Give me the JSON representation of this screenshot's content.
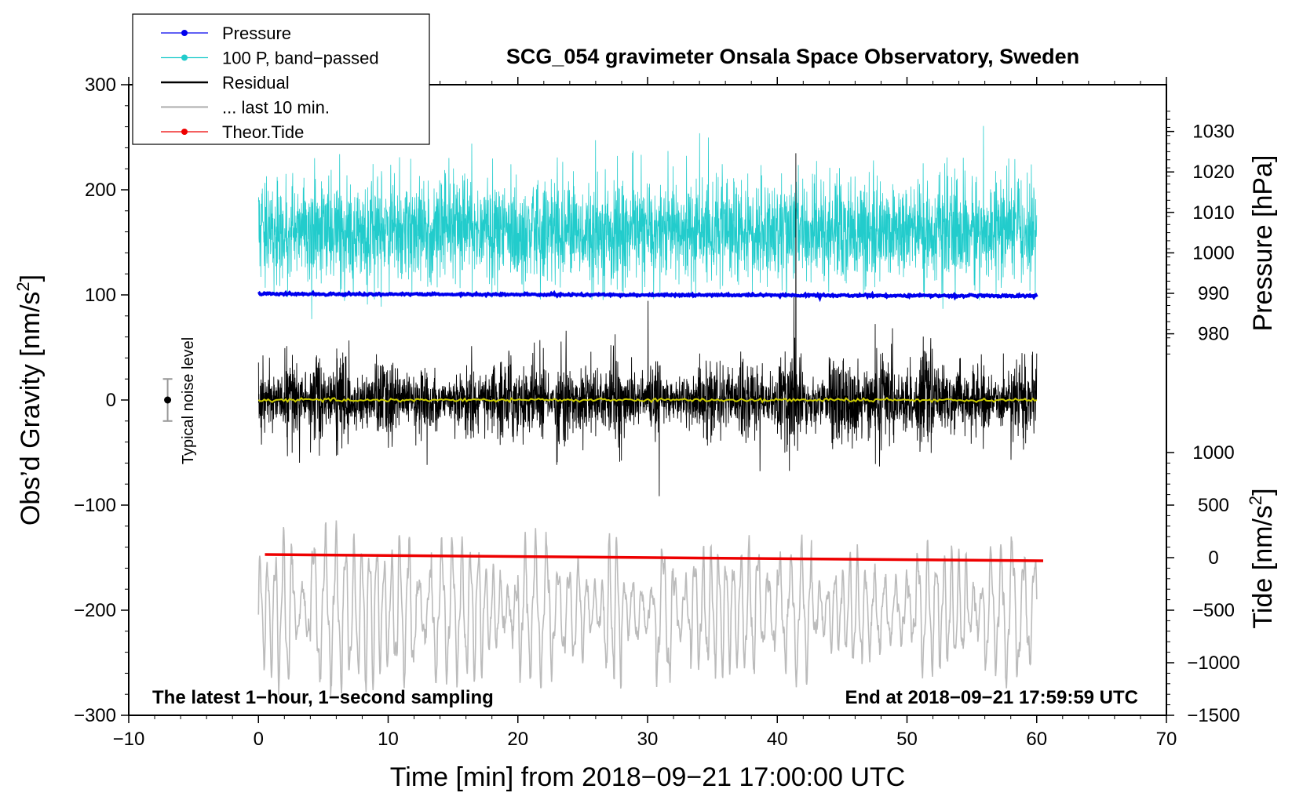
{
  "chart_data": {
    "type": "line",
    "title": "SCG_054 gravimeter Onsala Space Observatory, Sweden",
    "xlabel": "Time [min] from 2018−09−21 17:00:00 UTC",
    "ylabel_left_main": "Obs’d Gravity [nm/s",
    "ylabel_left_sup": "2",
    "ylabel_left_end": "]",
    "ylabel_right_top": "Pressure [hPa]",
    "ylabel_right_bottom_main": "Tide [nm/s",
    "ylabel_right_bottom_sup": "2",
    "ylabel_right_bottom_end": "]",
    "xlim": [
      -10,
      70
    ],
    "ylim": [
      -300,
      300
    ],
    "x_ticks": [
      "−10",
      "0",
      "10",
      "20",
      "30",
      "40",
      "50",
      "60",
      "70"
    ],
    "x_tick_values": [
      -10,
      0,
      10,
      20,
      30,
      40,
      50,
      60,
      70
    ],
    "y_ticks": [
      "300",
      "200",
      "100",
      "0",
      "−100",
      "−200",
      "−300"
    ],
    "y_tick_values": [
      300,
      200,
      100,
      0,
      -100,
      -200,
      -300
    ],
    "pressure_axis": {
      "ticks": [
        "1030",
        "1020",
        "1010",
        "1000",
        "990",
        "980"
      ],
      "values": [
        1030,
        1020,
        1010,
        1000,
        990,
        980
      ],
      "gravity_at_1000_hPa": 140,
      "gravity_per_hPa": 3.85
    },
    "tide_axis": {
      "ticks": [
        "1000",
        "500",
        "0",
        "−500",
        "−1000",
        "−1500"
      ],
      "values": [
        1000,
        500,
        0,
        -500,
        -1000,
        -1500
      ],
      "gravity_at_0": -150,
      "gravity_per_unit": 0.1
    },
    "series": [
      {
        "name": "Pressure",
        "color": "#0000ee",
        "start_gravity": 101,
        "end_gravity": 99
      },
      {
        "name": "100 P, band−passed",
        "color": "#22cccc",
        "center_gravity": 160,
        "amplitude": 45
      },
      {
        "name": "Residual",
        "color": "#000000",
        "center_gravity": 0,
        "amplitude": 50
      },
      {
        "name": "... last 10 min.",
        "color": "#bbbbbb",
        "center_gravity": -200,
        "amplitude": 55
      },
      {
        "name": "Theor.Tide",
        "color": "#ee0000",
        "start_gravity": -147,
        "end_gravity": -153
      }
    ],
    "smoothed_residual": {
      "color": "#cccc00",
      "value": 0
    },
    "noise_bar": {
      "x": -7,
      "center": 0,
      "half_range": 20,
      "label": "Typical noise level"
    },
    "annotations": {
      "left": "The latest 1−hour, 1−second sampling",
      "right": "End at 2018−09−21 17:59:59 UTC"
    },
    "time_range_minutes": [
      0,
      60
    ]
  }
}
